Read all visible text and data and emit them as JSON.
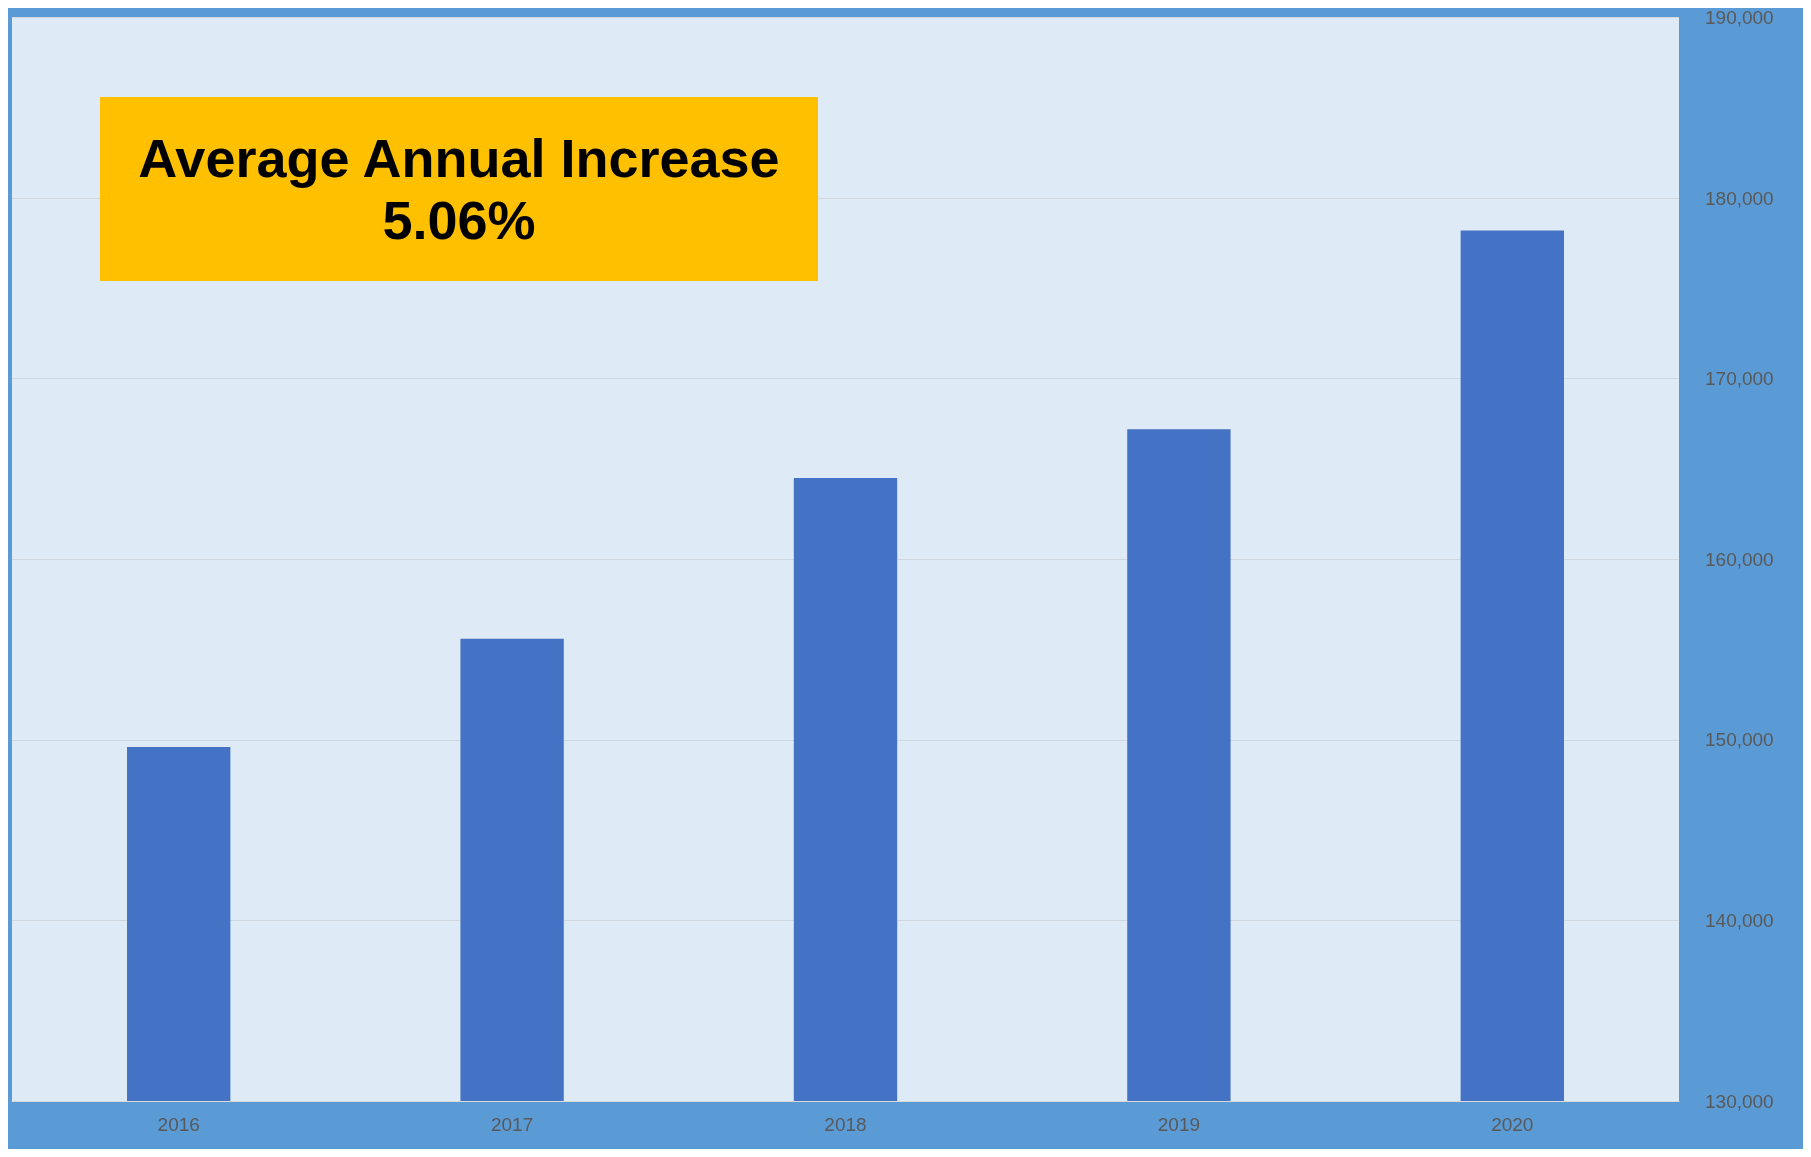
{
  "chart_data": {
    "type": "bar",
    "categories": [
      "2016",
      "2017",
      "2018",
      "2019",
      "2020"
    ],
    "values": [
      149600,
      155600,
      164500,
      167200,
      178200
    ],
    "color": "#4472c4",
    "ylim": [
      130000,
      190000
    ],
    "yticks": [
      {
        "value": 130000,
        "label": "130,000"
      },
      {
        "value": 140000,
        "label": "140,000"
      },
      {
        "value": 150000,
        "label": "150,000"
      },
      {
        "value": 160000,
        "label": "160,000"
      },
      {
        "value": 170000,
        "label": "170,000"
      },
      {
        "value": 180000,
        "label": "180,000"
      },
      {
        "value": 190000,
        "label": "190,000"
      }
    ],
    "grid": "y",
    "annotations": [
      "Average Annual Increase",
      "5.06%"
    ]
  }
}
